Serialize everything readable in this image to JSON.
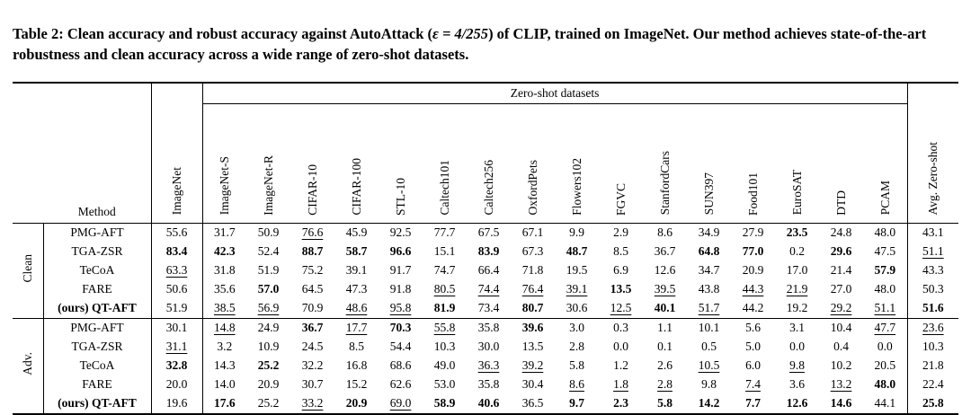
{
  "caption": {
    "part1": "Table 2: Clean accuracy and robust accuracy against AutoAttack (",
    "epsilon": "ε = 4/255",
    "part2": ") of CLIP, trained on ImageNet. Our method achieves state-of-the-art robustness and clean accuracy across a wide range of zero-shot datasets."
  },
  "table": {
    "span_header": "Zero-shot datasets",
    "method_col": "Method",
    "imagenet_col": "ImageNet",
    "avg_col": "Avg. Zero-shot",
    "zero_shot_cols": [
      "ImageNet-S",
      "ImageNet-R",
      "CIFAR-10",
      "CIFAR-100",
      "STL-10",
      "Caltech101",
      "Caltech256",
      "OxfordPets",
      "Flowers102",
      "FGVC",
      "StanfordCars",
      "SUN397",
      "Food101",
      "EuroSAT",
      "DTD",
      "PCAM"
    ],
    "groups": [
      {
        "label": "Clean",
        "rows": [
          {
            "method": "PMG-AFT",
            "ours": false,
            "imagenet": "55.6",
            "cells": [
              "31.7",
              "50.9",
              "u:76.6",
              "45.9",
              "92.5",
              "77.7",
              "67.5",
              "67.1",
              "9.9",
              "2.9",
              "8.6",
              "34.9",
              "27.9",
              "b:23.5",
              "24.8",
              "48.0"
            ],
            "avg": "43.1"
          },
          {
            "method": "TGA-ZSR",
            "ours": false,
            "imagenet": "b:83.4",
            "cells": [
              "b:42.3",
              "52.4",
              "b:88.7",
              "b:58.7",
              "b:96.6",
              "15.1",
              "b:83.9",
              "67.3",
              "b:48.7",
              "8.5",
              "36.7",
              "b:64.8",
              "b:77.0",
              "0.2",
              "b:29.6",
              "47.5"
            ],
            "avg": "u:51.1"
          },
          {
            "method": "TeCoA",
            "ours": false,
            "imagenet": "u:63.3",
            "cells": [
              "31.8",
              "51.9",
              "75.2",
              "39.1",
              "91.7",
              "74.7",
              "66.4",
              "71.8",
              "19.5",
              "6.9",
              "12.6",
              "34.7",
              "20.9",
              "17.0",
              "21.4",
              "b:57.9"
            ],
            "avg": "43.3"
          },
          {
            "method": "FARE",
            "ours": false,
            "imagenet": "50.6",
            "cells": [
              "35.6",
              "b:57.0",
              "64.5",
              "47.3",
              "91.8",
              "u:80.5",
              "u:74.4",
              "u:76.4",
              "u:39.1",
              "b:13.5",
              "u:39.5",
              "43.8",
              "u:44.3",
              "u:21.9",
              "27.0",
              "48.0"
            ],
            "avg": "50.3"
          },
          {
            "method": "(ours) QT-AFT",
            "ours": true,
            "imagenet": "51.9",
            "cells": [
              "u:38.5",
              "u:56.9",
              "70.9",
              "u:48.6",
              "u:95.8",
              "b:81.9",
              "73.4",
              "b:80.7",
              "30.6",
              "u:12.5",
              "b:40.1",
              "u:51.7",
              "44.2",
              "19.2",
              "u:29.2",
              "u:51.1"
            ],
            "avg": "b:51.6"
          }
        ]
      },
      {
        "label": "Adv.",
        "rows": [
          {
            "method": "PMG-AFT",
            "ours": false,
            "imagenet": "30.1",
            "cells": [
              "u:14.8",
              "24.9",
              "b:36.7",
              "u:17.7",
              "b:70.3",
              "u:55.8",
              "35.8",
              "b:39.6",
              "3.0",
              "0.3",
              "1.1",
              "10.1",
              "5.6",
              "3.1",
              "10.4",
              "u:47.7"
            ],
            "avg": "u:23.6"
          },
          {
            "method": "TGA-ZSR",
            "ours": false,
            "imagenet": "u:31.1",
            "cells": [
              "3.2",
              "10.9",
              "24.5",
              "8.5",
              "54.4",
              "10.3",
              "30.0",
              "13.5",
              "2.8",
              "0.0",
              "0.1",
              "0.5",
              "5.0",
              "0.0",
              "0.4",
              "0.0"
            ],
            "avg": "10.3"
          },
          {
            "method": "TeCoA",
            "ours": false,
            "imagenet": "b:32.8",
            "cells": [
              "14.3",
              "b:25.2",
              "32.2",
              "16.8",
              "68.6",
              "49.0",
              "u:36.3",
              "u:39.2",
              "5.8",
              "1.2",
              "2.6",
              "u:10.5",
              "6.0",
              "u:9.8",
              "10.2",
              "20.5"
            ],
            "avg": "21.8"
          },
          {
            "method": "FARE",
            "ours": false,
            "imagenet": "20.0",
            "cells": [
              "14.0",
              "20.9",
              "30.7",
              "15.2",
              "62.6",
              "53.0",
              "35.8",
              "30.4",
              "u:8.6",
              "u:1.8",
              "u:2.8",
              "9.8",
              "u:7.4",
              "3.6",
              "u:13.2",
              "b:48.0"
            ],
            "avg": "22.4"
          },
          {
            "method": "(ours) QT-AFT",
            "ours": true,
            "imagenet": "19.6",
            "cells": [
              "b:17.6",
              "25.2",
              "u:33.2",
              "b:20.9",
              "u:69.0",
              "b:58.9",
              "b:40.6",
              "36.5",
              "b:9.7",
              "b:2.3",
              "b:5.8",
              "b:14.2",
              "b:7.7",
              "b:12.6",
              "b:14.6",
              "44.1"
            ],
            "avg": "b:25.8"
          }
        ]
      }
    ]
  }
}
